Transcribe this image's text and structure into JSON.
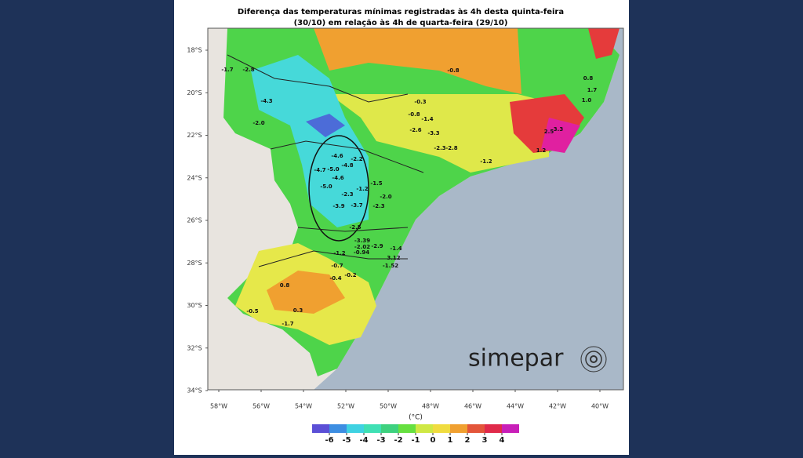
{
  "title": [
    "Diferença das temperaturas mínimas registradas às 4h desta quinta-feira",
    "(30/10) em relação às 4h de quarta-feira (29/10)"
  ],
  "latitude_labels": [
    "18°S",
    "20°S",
    "22°S",
    "24°S",
    "26°S",
    "28°S",
    "30°S",
    "32°S",
    "34°S"
  ],
  "longitude_labels": [
    "58°W",
    "56°W",
    "54°W",
    "52°W",
    "50°W",
    "48°W",
    "46°W",
    "44°W",
    "42°W",
    "40°W"
  ],
  "point_values": [
    "-1.7",
    "-2.8",
    "-4.3",
    "-2.0",
    "-0.8",
    "-0.3",
    "-0.8",
    "-1.4",
    "-2.6",
    "-3.3",
    "-2.3",
    "-2.8",
    "-4.6",
    "-4.8",
    "-5.0",
    "-4.7",
    "-4.6",
    "-5.0",
    "-2.2",
    "-1.2",
    "-1.5",
    "-2.0",
    "-2.3",
    "-3.9",
    "-3.7",
    "-2.3",
    "-2.5",
    "-3.39",
    "-2.02",
    "-0.94",
    "-2.9",
    "-1.4",
    "-1.2",
    "-0.7",
    "-0.4",
    "-0.2",
    "3.12",
    "-1.52",
    "0.8",
    "0.3",
    "-1.7",
    "-0.5",
    "-1.2",
    "0.8",
    "1.7",
    "1.0",
    "2.5",
    "3.3",
    "1.2"
  ],
  "colorbar": {
    "unit": "(°C)",
    "ticks": [
      -6,
      -5,
      -4,
      -3,
      -2,
      -1,
      0,
      1,
      2,
      3,
      4
    ]
  },
  "logo": "simepar"
}
